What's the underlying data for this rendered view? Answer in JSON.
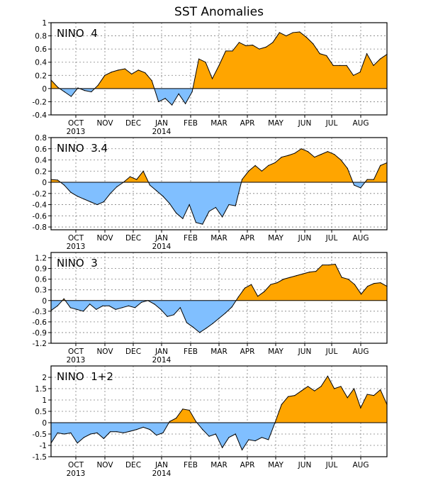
{
  "chart_data": {
    "type": "area",
    "title": "SST Anomalies",
    "colors": {
      "positive": "#ffa500",
      "negative": "#80bfff",
      "line": "#000000"
    },
    "x_ticks": [
      "OCT",
      "NOV",
      "DEC",
      "JAN",
      "FEB",
      "MAR",
      "APR",
      "MAY",
      "JUN",
      "JUL",
      "AUG"
    ],
    "year_labels": [
      {
        "text": "2013",
        "under": "OCT"
      },
      {
        "text": "2014",
        "under": "JAN"
      }
    ],
    "x_range_weeks": [
      0,
      48
    ],
    "panels": [
      {
        "label": "NINO  4",
        "ylim": [
          -0.4,
          1.0
        ],
        "yticks": [
          {
            "v": -0.4,
            "t": "-0.4"
          },
          {
            "v": -0.2,
            "t": "-0.2"
          },
          {
            "v": 0,
            "t": "0"
          },
          {
            "v": 0.2,
            "t": "0.2"
          },
          {
            "v": 0.4,
            "t": "0.4"
          },
          {
            "v": 0.6,
            "t": "0.6"
          },
          {
            "v": 0.8,
            "t": "0.8"
          },
          {
            "v": 1.0,
            "t": "1"
          }
        ],
        "values": [
          0.13,
          0.02,
          -0.05,
          -0.12,
          0.01,
          -0.03,
          -0.05,
          0.05,
          0.2,
          0.25,
          0.28,
          0.3,
          0.22,
          0.28,
          0.24,
          0.12,
          -0.2,
          -0.15,
          -0.25,
          -0.08,
          -0.23,
          -0.05,
          0.45,
          0.4,
          0.15,
          0.35,
          0.57,
          0.57,
          0.7,
          0.65,
          0.66,
          0.6,
          0.63,
          0.7,
          0.85,
          0.8,
          0.85,
          0.86,
          0.78,
          0.68,
          0.53,
          0.5,
          0.35,
          0.35,
          0.35,
          0.2,
          0.25,
          0.53,
          0.35,
          0.45,
          0.52
        ]
      },
      {
        "label": "NINO  3.4",
        "ylim": [
          -0.85,
          0.8
        ],
        "yticks": [
          {
            "v": -0.8,
            "t": "-0.8"
          },
          {
            "v": -0.6,
            "t": "-0.6"
          },
          {
            "v": -0.4,
            "t": "-0.4"
          },
          {
            "v": -0.2,
            "t": "-0.2"
          },
          {
            "v": 0,
            "t": "0"
          },
          {
            "v": 0.2,
            "t": "0.2"
          },
          {
            "v": 0.4,
            "t": "0.4"
          },
          {
            "v": 0.6,
            "t": "0.6"
          },
          {
            "v": 0.8,
            "t": "0.8"
          }
        ],
        "values": [
          0.05,
          0.04,
          -0.05,
          -0.18,
          -0.25,
          -0.3,
          -0.35,
          -0.4,
          -0.35,
          -0.2,
          -0.08,
          0.0,
          0.1,
          0.05,
          0.2,
          -0.05,
          -0.15,
          -0.25,
          -0.38,
          -0.55,
          -0.65,
          -0.4,
          -0.72,
          -0.75,
          -0.52,
          -0.45,
          -0.62,
          -0.4,
          -0.42,
          0.05,
          0.2,
          0.3,
          0.2,
          0.3,
          0.35,
          0.45,
          0.48,
          0.52,
          0.6,
          0.55,
          0.45,
          0.5,
          0.55,
          0.5,
          0.4,
          0.25,
          -0.05,
          -0.1,
          0.05,
          0.05,
          0.3,
          0.35
        ]
      },
      {
        "label": "NINO  3",
        "ylim": [
          -1.2,
          1.35
        ],
        "yticks": [
          {
            "v": -1.2,
            "t": "-1.2"
          },
          {
            "v": -0.9,
            "t": "-0.9"
          },
          {
            "v": -0.6,
            "t": "-0.6"
          },
          {
            "v": -0.3,
            "t": "-0.3"
          },
          {
            "v": 0,
            "t": "0"
          },
          {
            "v": 0.3,
            "t": "0.3"
          },
          {
            "v": 0.6,
            "t": "0.6"
          },
          {
            "v": 0.9,
            "t": "0.9"
          },
          {
            "v": 1.2,
            "t": "1.2"
          }
        ],
        "values": [
          -0.28,
          -0.15,
          0.05,
          -0.2,
          -0.25,
          -0.3,
          -0.1,
          -0.25,
          -0.15,
          -0.15,
          -0.25,
          -0.2,
          -0.15,
          -0.2,
          -0.05,
          0.0,
          -0.1,
          -0.25,
          -0.45,
          -0.4,
          -0.2,
          -0.62,
          -0.75,
          -0.9,
          -0.78,
          -0.65,
          -0.5,
          -0.35,
          -0.18,
          0.1,
          0.35,
          0.45,
          0.12,
          0.25,
          0.45,
          0.5,
          0.6,
          0.65,
          0.7,
          0.75,
          0.8,
          0.82,
          1.0,
          1.0,
          1.02,
          0.65,
          0.6,
          0.45,
          0.18,
          0.4,
          0.48,
          0.5,
          0.4
        ]
      },
      {
        "label": "NINO  1+2",
        "ylim": [
          -1.5,
          2.5
        ],
        "yticks": [
          {
            "v": -1.5,
            "t": "-1.5"
          },
          {
            "v": -1,
            "t": "-1"
          },
          {
            "v": -0.5,
            "t": "-0.5"
          },
          {
            "v": 0,
            "t": "0"
          },
          {
            "v": 0.5,
            "t": "0.5"
          },
          {
            "v": 1,
            "t": "1"
          },
          {
            "v": 1.5,
            "t": "1.5"
          },
          {
            "v": 2,
            "t": "2"
          }
        ],
        "values": [
          -0.9,
          -0.45,
          -0.5,
          -0.45,
          -0.9,
          -0.65,
          -0.5,
          -0.45,
          -0.7,
          -0.4,
          -0.4,
          -0.45,
          -0.38,
          -0.3,
          -0.2,
          -0.3,
          -0.55,
          -0.45,
          0.05,
          0.2,
          0.6,
          0.55,
          0.05,
          -0.3,
          -0.6,
          -0.5,
          -1.1,
          -0.65,
          -0.5,
          -1.2,
          -0.75,
          -0.8,
          -0.65,
          -0.75,
          0.0,
          0.8,
          1.15,
          1.2,
          1.4,
          1.6,
          1.4,
          1.6,
          2.05,
          1.5,
          1.6,
          1.1,
          1.5,
          0.65,
          1.25,
          1.2,
          1.45,
          0.8
        ]
      }
    ]
  }
}
